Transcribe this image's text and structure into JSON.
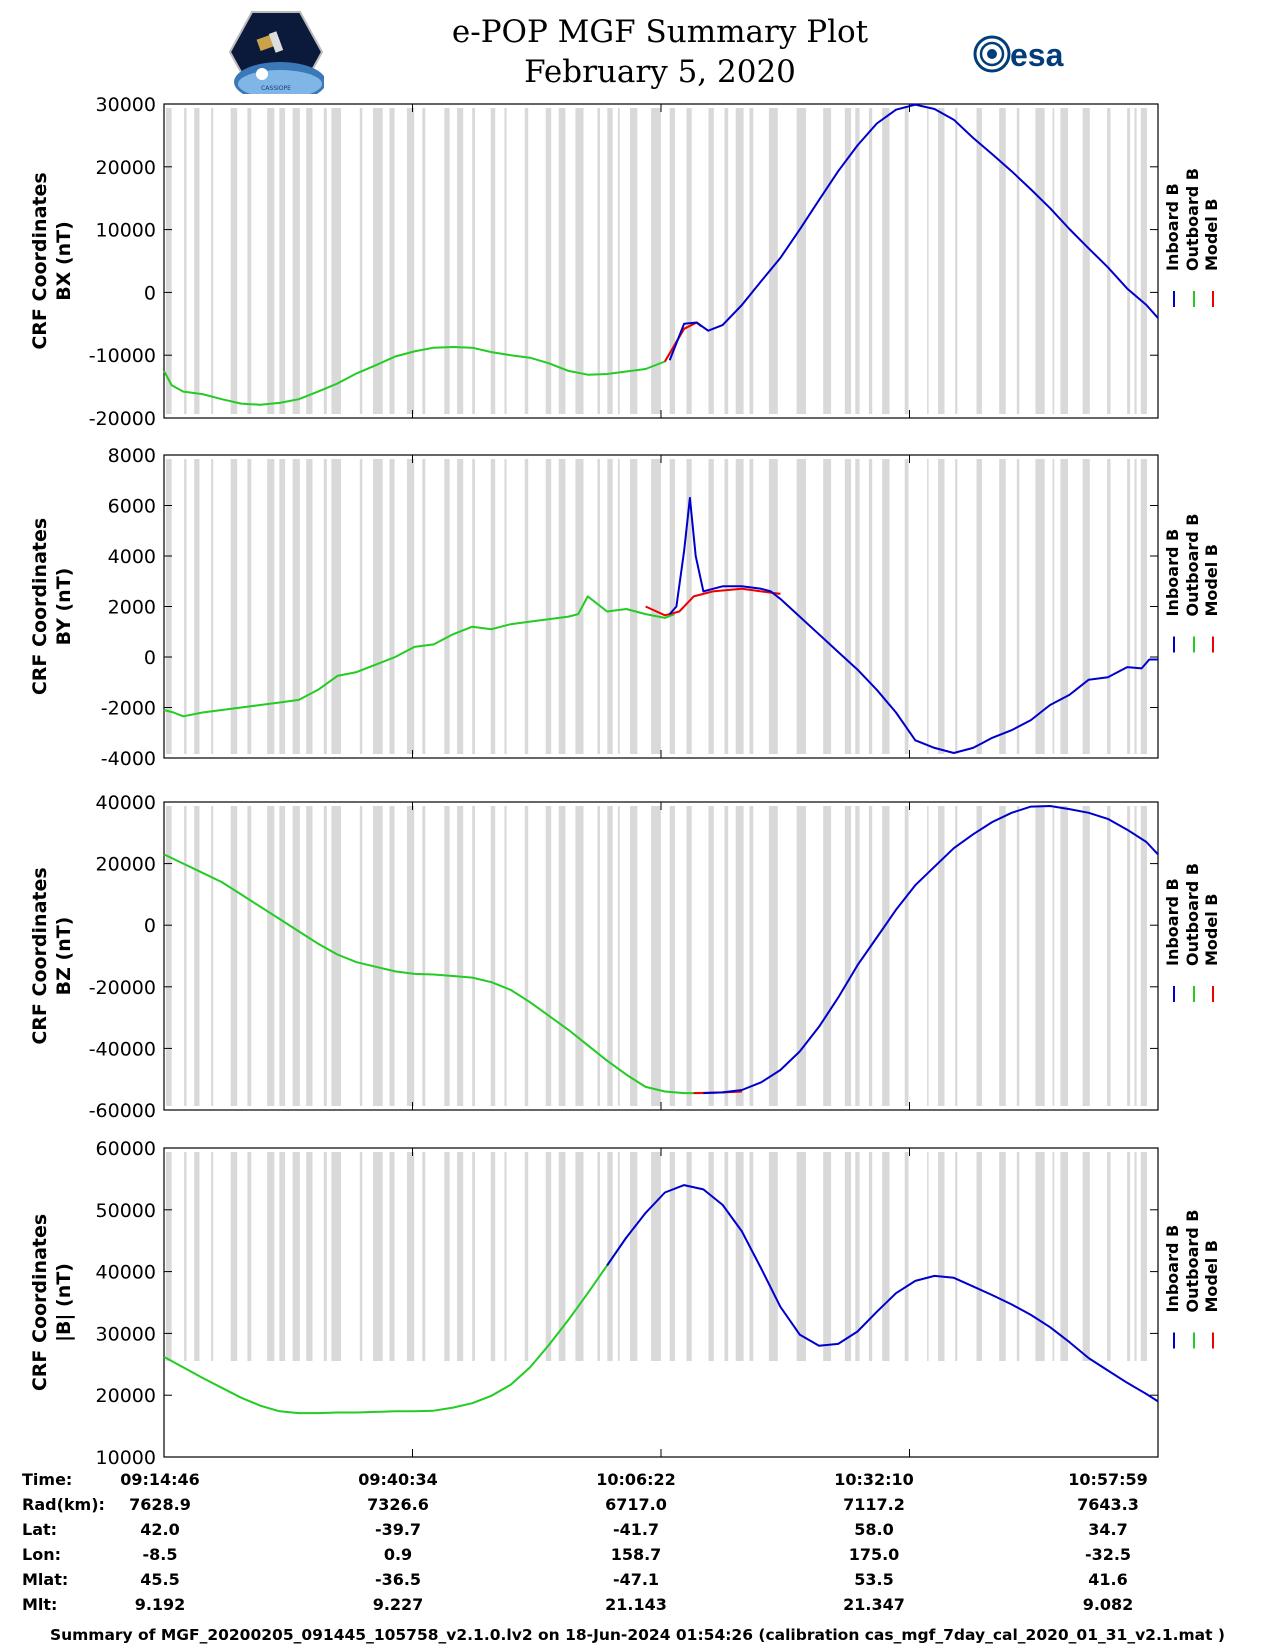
{
  "header": {
    "title_line1": "e-POP MGF Summary Plot",
    "title_line2": "February 5, 2020",
    "logo_left_text": "CASSIOPE",
    "logo_right_text": "esa"
  },
  "colors": {
    "inboard": "#0000cc",
    "outboard": "#22cc22",
    "model": "#ee0000",
    "gap_band": "#d9d9d9"
  },
  "legend_labels": [
    "Inboard B",
    "Outboard B",
    "Model B"
  ],
  "chart_data": [
    {
      "type": "line",
      "title": "",
      "ylabel_line1": "CRF Coordinates",
      "ylabel_line2": "BX (nT)",
      "ylim": [
        -20000,
        30000
      ],
      "yticks": [
        -20000,
        -10000,
        0,
        10000,
        20000,
        30000
      ],
      "ytick_labels": [
        "-20000",
        "-10000",
        "0",
        "10000",
        "20000",
        "30000"
      ],
      "x_unit": "minutes since 09:14:46",
      "xlim": [
        0,
        103.2
      ],
      "series": [
        {
          "name": "Outboard B",
          "x": [
            0,
            0.8,
            2,
            4,
            6,
            8,
            10,
            12,
            14,
            16,
            18,
            20,
            22,
            24,
            26,
            28,
            30,
            32,
            34,
            36,
            38,
            40,
            42,
            44,
            46,
            48,
            50,
            52,
            54,
            55.3,
            55.8
          ],
          "y": [
            -12500,
            -14800,
            -15800,
            -16200,
            -17000,
            -17700,
            -17900,
            -17600,
            -17000,
            -15800,
            -14500,
            -12900,
            -11600,
            -10200,
            -9400,
            -8800,
            -8700,
            -8800,
            -9500,
            -10000,
            -10400,
            -11300,
            -12500,
            -13100,
            -13000,
            -12600,
            -12200,
            -11000,
            -5800,
            -4800,
            -5400
          ]
        },
        {
          "name": "Model B",
          "x": [
            52,
            54,
            55.3,
            55.8
          ],
          "y": [
            -11000,
            -5800,
            -4800,
            -5400
          ]
        },
        {
          "name": "Inboard B",
          "x": [
            52.5,
            54,
            55.3,
            56.5,
            58,
            60,
            62,
            64,
            66,
            68,
            70,
            72,
            74,
            76,
            78,
            80,
            82,
            84,
            86,
            88,
            90,
            92,
            94,
            96,
            98,
            100,
            102,
            103.2
          ],
          "y": [
            -10800,
            -5000,
            -4800,
            -6100,
            -5200,
            -2000,
            1800,
            5500,
            10000,
            14700,
            19300,
            23400,
            26900,
            29100,
            29900,
            29200,
            27500,
            24600,
            22000,
            19300,
            16400,
            13400,
            10100,
            7000,
            4000,
            600,
            -2000,
            -4100
          ]
        }
      ]
    },
    {
      "type": "line",
      "title": "",
      "ylabel_line1": "CRF Coordinates",
      "ylabel_line2": "BY (nT)",
      "ylim": [
        -4000,
        8000
      ],
      "yticks": [
        -4000,
        -2000,
        0,
        2000,
        4000,
        6000,
        8000
      ],
      "ytick_labels": [
        "-4000",
        "-2000",
        "0",
        "2000",
        "4000",
        "6000",
        "8000"
      ],
      "x_unit": "minutes since 09:14:46",
      "xlim": [
        0,
        103.2
      ],
      "series": [
        {
          "name": "Outboard B",
          "x": [
            0,
            1,
            2,
            4,
            6,
            8,
            10,
            12,
            14,
            16,
            18,
            20,
            22,
            24,
            26,
            28,
            30,
            32,
            34,
            36,
            38,
            40,
            42,
            43,
            44,
            46,
            48,
            50,
            52,
            53
          ],
          "y": [
            -2100,
            -2200,
            -2350,
            -2200,
            -2100,
            -2000,
            -1900,
            -1800,
            -1700,
            -1300,
            -750,
            -600,
            -300,
            0,
            400,
            500,
            900,
            1200,
            1100,
            1300,
            1400,
            1500,
            1600,
            1700,
            2400,
            1800,
            1900,
            1700,
            1550,
            1700
          ]
        },
        {
          "name": "Model B",
          "x": [
            50,
            52,
            53.5,
            55,
            57,
            60,
            62,
            64
          ],
          "y": [
            2000,
            1650,
            1800,
            2400,
            2600,
            2700,
            2600,
            2500
          ]
        },
        {
          "name": "Inboard B",
          "x": [
            52.5,
            53.2,
            54,
            54.6,
            55.2,
            56,
            57,
            58,
            60,
            62,
            63,
            64,
            66,
            68,
            70,
            72,
            74,
            76,
            78,
            80,
            82,
            84,
            85,
            86,
            88,
            90,
            91,
            92,
            94,
            95,
            96,
            98,
            100,
            101.5,
            102.3,
            103.2
          ],
          "y": [
            1700,
            2000,
            4200,
            6300,
            4000,
            2600,
            2700,
            2800,
            2800,
            2700,
            2600,
            2300,
            1600,
            900,
            200,
            -500,
            -1300,
            -2200,
            -3300,
            -3600,
            -3800,
            -3600,
            -3400,
            -3200,
            -2900,
            -2500,
            -2200,
            -1900,
            -1500,
            -1200,
            -900,
            -800,
            -400,
            -450,
            -100,
            -100
          ]
        }
      ]
    },
    {
      "type": "line",
      "title": "",
      "ylabel_line1": "CRF Coordinates",
      "ylabel_line2": "BZ (nT)",
      "ylim": [
        -60000,
        40000
      ],
      "yticks": [
        -60000,
        -40000,
        -20000,
        0,
        20000,
        40000
      ],
      "ytick_labels": [
        "-60000",
        "-40000",
        "-20000",
        "0",
        "20000",
        "40000"
      ],
      "x_unit": "minutes since 09:14:46",
      "xlim": [
        0,
        103.2
      ],
      "series": [
        {
          "name": "Outboard B",
          "x": [
            0,
            2,
            4,
            6,
            8,
            10,
            12,
            14,
            16,
            18,
            20,
            22,
            24,
            26,
            28,
            30,
            32,
            34,
            36,
            38,
            40,
            42,
            44,
            46,
            48,
            50,
            52,
            54,
            56,
            58,
            60
          ],
          "y": [
            23000,
            20000,
            17000,
            14000,
            10000,
            6000,
            2000,
            -2000,
            -6000,
            -9500,
            -12000,
            -13500,
            -15000,
            -15800,
            -16000,
            -16500,
            -17000,
            -18500,
            -21000,
            -25000,
            -29500,
            -34000,
            -39000,
            -44000,
            -48500,
            -52500,
            -54000,
            -54500,
            -54500,
            -54300,
            -54000
          ]
        },
        {
          "name": "Model B",
          "x": [
            55,
            58,
            60
          ],
          "y": [
            -54500,
            -54300,
            -54000
          ]
        },
        {
          "name": "Inboard B",
          "x": [
            56,
            58,
            60,
            62,
            64,
            66,
            68,
            70,
            72,
            74,
            76,
            78,
            80,
            82,
            84,
            86,
            88,
            90,
            92,
            94,
            96,
            98,
            100,
            102,
            103.2
          ],
          "y": [
            -54500,
            -54300,
            -53500,
            -51000,
            -47000,
            -41000,
            -33000,
            -23500,
            -13000,
            -4000,
            5000,
            13000,
            19000,
            25000,
            29500,
            33500,
            36500,
            38500,
            38700,
            37700,
            36500,
            34500,
            31000,
            27000,
            23000
          ]
        }
      ]
    },
    {
      "type": "line",
      "title": "",
      "ylabel_line1": "CRF Coordinates",
      "ylabel_line2": "|B| (nT)",
      "ylim": [
        10000,
        60000
      ],
      "yticks": [
        10000,
        20000,
        30000,
        40000,
        50000,
        60000
      ],
      "ytick_labels": [
        "10000",
        "20000",
        "30000",
        "40000",
        "50000",
        "60000"
      ],
      "x_unit": "minutes since 09:14:46",
      "xlim": [
        0,
        103.2
      ],
      "series": [
        {
          "name": "Outboard B",
          "x": [
            0,
            2,
            4,
            6,
            8,
            10,
            12,
            14,
            16,
            18,
            20,
            22,
            24,
            26,
            28,
            30,
            32,
            34,
            36,
            38,
            40,
            42,
            44,
            46,
            48
          ],
          "y": [
            26200,
            24500,
            22800,
            21200,
            19600,
            18300,
            17400,
            17100,
            17100,
            17200,
            17200,
            17300,
            17400,
            17400,
            17500,
            18000,
            18700,
            19900,
            21700,
            24500,
            28200,
            32200,
            36500,
            41000,
            45500
          ]
        },
        {
          "name": "Inboard B",
          "x": [
            46,
            48,
            50,
            52,
            54,
            56,
            58,
            60,
            62,
            64,
            66,
            68,
            70,
            72,
            74,
            76,
            78,
            80,
            82,
            84,
            86,
            88,
            90,
            92,
            94,
            96,
            98,
            100,
            102,
            103.2
          ],
          "y": [
            41000,
            45500,
            49500,
            52800,
            54000,
            53300,
            50800,
            46500,
            40500,
            34300,
            29800,
            28000,
            28300,
            30300,
            33500,
            36500,
            38500,
            39300,
            39000,
            37600,
            36200,
            34700,
            33000,
            31000,
            28600,
            26000,
            24000,
            22000,
            20200,
            19000
          ]
        }
      ]
    }
  ],
  "xaxis": {
    "tick_positions_min": [
      0,
      25.8,
      51.6,
      77.4,
      103.2
    ],
    "ticks": [
      {
        "time": "09:14:46",
        "rad": "7628.9",
        "lat": "42.0",
        "lon": "-8.5",
        "mlat": "45.5",
        "mlt": "9.192"
      },
      {
        "time": "09:40:34",
        "rad": "7326.6",
        "lat": "-39.7",
        "lon": "0.9",
        "mlat": "-36.5",
        "mlt": "9.227"
      },
      {
        "time": "10:06:22",
        "rad": "6717.0",
        "lat": "-41.7",
        "lon": "158.7",
        "mlat": "-47.1",
        "mlt": "21.143"
      },
      {
        "time": "10:32:10",
        "rad": "7117.2",
        "lat": "58.0",
        "lon": "175.0",
        "mlat": "53.5",
        "mlt": "21.347"
      },
      {
        "time": "10:57:59",
        "rad": "7643.3",
        "lat": "34.7",
        "lon": "-32.5",
        "mlat": "41.6",
        "mlt": "9.082"
      }
    ]
  },
  "row_labels": {
    "time": "Time:",
    "rad": "Rad(km):",
    "lat": "Lat:",
    "lon": "Lon:",
    "mlat": "Mlat:",
    "mlt": "Mlt:"
  },
  "footer": "Summary of MGF_20200205_091445_105758_v2.1.0.lv2 on 18-Jun-2024 01:54:26 (calibration cas_mgf_7day_cal_2020_01_31_v2.1.mat )"
}
